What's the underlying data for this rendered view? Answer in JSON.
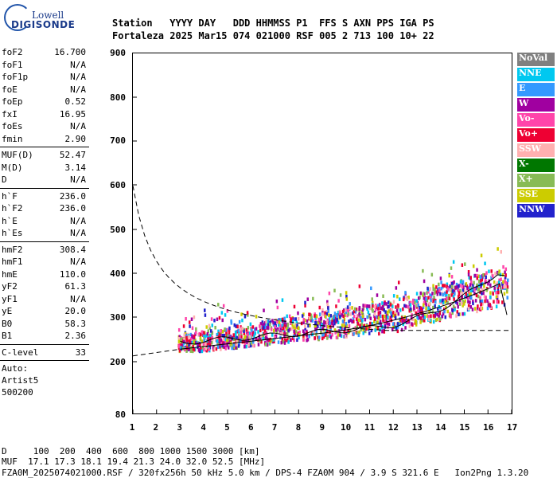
{
  "logo": {
    "line1": "Lowell",
    "line2": "DIGISONDE"
  },
  "header": {
    "line1": "Station   YYYY DAY   DDD HHMMSS P1  FFS S AXN PPS IGA PS",
    "line2": "Fortaleza 2025 Mar15 074 021000 RSF 005 2 713 100 10+ 22"
  },
  "params_block1": [
    {
      "k": "foF2",
      "v": "16.700"
    },
    {
      "k": "foF1",
      "v": "N/A"
    },
    {
      "k": "foF1p",
      "v": "N/A"
    },
    {
      "k": "foE",
      "v": "N/A"
    },
    {
      "k": "foEp",
      "v": "0.52"
    },
    {
      "k": "fxI",
      "v": "16.95"
    },
    {
      "k": "foEs",
      "v": "N/A"
    },
    {
      "k": "fmin",
      "v": "2.90"
    }
  ],
  "params_block2": [
    {
      "k": "MUF(D)",
      "v": "52.47"
    },
    {
      "k": "M(D)",
      "v": "3.14"
    },
    {
      "k": "D",
      "v": "N/A"
    }
  ],
  "params_block3": [
    {
      "k": "h`F",
      "v": "236.0"
    },
    {
      "k": "h`F2",
      "v": "236.0"
    },
    {
      "k": "h`E",
      "v": "N/A"
    },
    {
      "k": "h`Es",
      "v": "N/A"
    }
  ],
  "params_block4": [
    {
      "k": "hmF2",
      "v": "308.4"
    },
    {
      "k": "hmF1",
      "v": "N/A"
    },
    {
      "k": "hmE",
      "v": "110.0"
    },
    {
      "k": "yF2",
      "v": "61.3"
    },
    {
      "k": "yF1",
      "v": "N/A"
    },
    {
      "k": "yE",
      "v": "20.0"
    },
    {
      "k": "B0",
      "v": "58.3"
    },
    {
      "k": "B1",
      "v": "2.36"
    }
  ],
  "params_block5": [
    {
      "k": "C-level",
      "v": "33"
    }
  ],
  "misc": [
    "Auto:",
    "Artist5",
    "500200"
  ],
  "axes": {
    "y_ticks": [
      "900",
      "800",
      "700",
      "600",
      "500",
      "400",
      "300",
      "200",
      "80"
    ],
    "x_ticks": [
      "1",
      "2",
      "3",
      "4",
      "5",
      "6",
      "7",
      "8",
      "9",
      "10",
      "11",
      "12",
      "13",
      "14",
      "15",
      "16",
      "17"
    ]
  },
  "legend": [
    {
      "label": "NoVal",
      "color": "#808080"
    },
    {
      "label": "NNE",
      "color": "#00c8f0"
    },
    {
      "label": "E",
      "color": "#3399ff"
    },
    {
      "label": "W",
      "color": "#a000a0"
    },
    {
      "label": "Vo-",
      "color": "#ff44aa"
    },
    {
      "label": "Vo+",
      "color": "#ee0033"
    },
    {
      "label": "SSW",
      "color": "#ffb0b0"
    },
    {
      "label": "X-",
      "color": "#007700"
    },
    {
      "label": "X+",
      "color": "#88bb55"
    },
    {
      "label": "SSE",
      "color": "#cccc00"
    },
    {
      "label": "NNW",
      "color": "#2222cc"
    }
  ],
  "footer": {
    "line1": "D     100  200  400  600  800 1000 1500 3000 [km]",
    "line2": "MUF  17.1 17.3 18.1 19.4 21.3 24.0 32.0 52.5 [MHz]",
    "line3": "FZA0M_2025074021000.RSF / 320fx256h 50 kHz 5.0 km / DPS-4 FZA0M 904 / 3.9 S 321.6 E   Ion2Png 1.3.20"
  }
}
